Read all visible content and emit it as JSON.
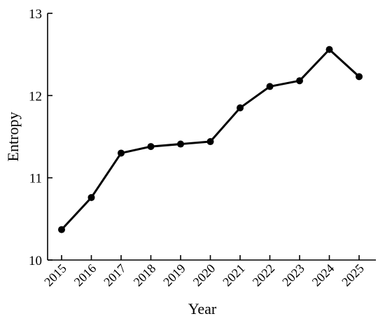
{
  "chart_data": {
    "type": "line",
    "title": "",
    "xlabel": "Year",
    "ylabel": "Entropy",
    "categories": [
      "2015",
      "2016",
      "2017",
      "2018",
      "2019",
      "2020",
      "2021",
      "2022",
      "2023",
      "2024",
      "2025"
    ],
    "series": [
      {
        "values": [
          10.37,
          10.76,
          11.3,
          11.38,
          11.41,
          11.44,
          11.85,
          12.11,
          12.18,
          12.56,
          12.23
        ],
        "color": "#000000",
        "marker": "filled-circle"
      }
    ],
    "ylim": [
      10,
      13
    ],
    "yticks": [
      "10",
      "11",
      "12",
      "13"
    ],
    "grid": false,
    "legend": "none"
  }
}
